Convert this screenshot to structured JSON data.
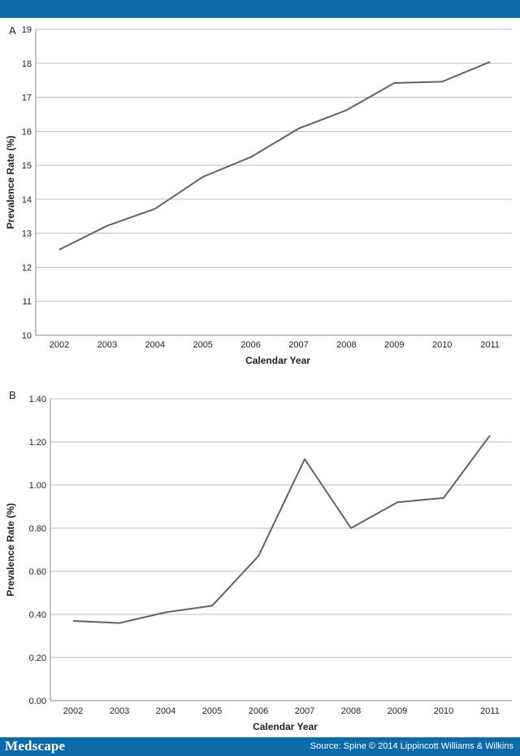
{
  "footer": {
    "brand": "Medscape",
    "source": "Source: Spine © 2014 Lippincott Williams & Wilkins"
  },
  "colors": {
    "banner": "#0b6aa7",
    "line": "#636363",
    "grid": "#bdbdbd"
  },
  "chart_data": [
    {
      "panel": "A",
      "type": "line",
      "x": [
        "2002",
        "2003",
        "2004",
        "2005",
        "2006",
        "2007",
        "2008",
        "2009",
        "2010",
        "2011"
      ],
      "series": [
        {
          "values": [
            12.52,
            13.22,
            13.72,
            14.66,
            15.24,
            16.08,
            16.62,
            17.42,
            17.46,
            18.04
          ]
        }
      ],
      "xlabel": "Calendar Year",
      "ylabel": "Prevalence Rate (%)",
      "ylim": [
        10,
        19
      ],
      "yticks": [
        "10",
        "11",
        "12",
        "13",
        "14",
        "15",
        "16",
        "17",
        "18",
        "19"
      ],
      "grid": true
    },
    {
      "panel": "B",
      "type": "line",
      "x": [
        "2002",
        "2003",
        "2004",
        "2005",
        "2006",
        "2007",
        "2008",
        "2009",
        "2010",
        "2011"
      ],
      "series": [
        {
          "values": [
            0.37,
            0.36,
            0.41,
            0.44,
            0.67,
            1.12,
            0.8,
            0.92,
            0.94,
            1.23
          ]
        }
      ],
      "xlabel": "Calendar Year",
      "ylabel": "Prevalence Rate (%)",
      "ylim": [
        0,
        1.4
      ],
      "yticks": [
        "0.00",
        "0.20",
        "0.40",
        "0.60",
        "0.80",
        "1.00",
        "1.20",
        "1.40"
      ],
      "grid": true
    }
  ]
}
